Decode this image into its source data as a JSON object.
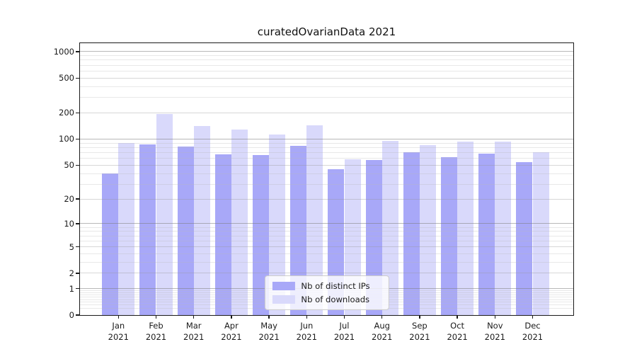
{
  "chart_data": {
    "type": "bar",
    "title": "curatedOvarianData 2021",
    "categories": [
      "Jan",
      "Feb",
      "Mar",
      "Apr",
      "May",
      "Jun",
      "Jul",
      "Aug",
      "Sep",
      "Oct",
      "Nov",
      "Dec"
    ],
    "year_label": "2021",
    "series": [
      {
        "name": "Nb of distinct IPs",
        "color": "#a8a8f8",
        "values": [
          40,
          87,
          82,
          67,
          66,
          84,
          45,
          57,
          70,
          62,
          68,
          54
        ]
      },
      {
        "name": "Nb of downloads",
        "color": "#d9d9fb",
        "values": [
          90,
          195,
          141,
          128,
          113,
          145,
          59,
          95,
          85,
          94,
          94,
          70
        ]
      }
    ],
    "yticks": [
      0,
      1,
      2,
      5,
      10,
      20,
      50,
      100,
      200,
      500,
      1000
    ],
    "scale": "log1p",
    "ylim": [
      0,
      1250
    ],
    "xlabel": "",
    "ylabel": "",
    "grid": true,
    "legend_position": "lower center",
    "colors": {
      "background": "#ffffff",
      "axis": "#1a1a1a",
      "grid_major": "#b2b2b2",
      "grid_minor": "#e6e6e6",
      "legend_border": "#cccccc"
    }
  }
}
